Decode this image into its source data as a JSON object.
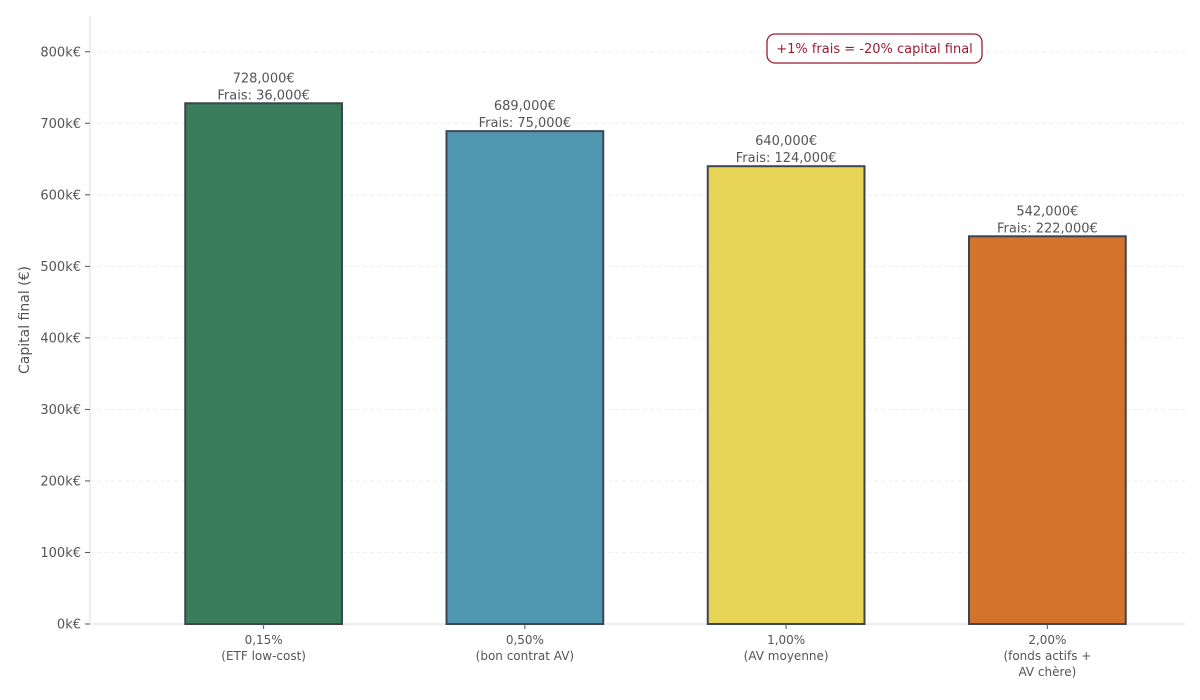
{
  "chart_data": {
    "type": "bar",
    "title": "",
    "xlabel": "",
    "ylabel": "Capital final (€)",
    "ylim": [
      0,
      850000
    ],
    "yticks": [
      0,
      100000,
      200000,
      300000,
      400000,
      500000,
      600000,
      700000,
      800000
    ],
    "ytick_labels": [
      "0k€",
      "100k€",
      "200k€",
      "300k€",
      "400k€",
      "500k€",
      "600k€",
      "700k€",
      "800k€"
    ],
    "grid": true,
    "categories": [
      [
        "0,15%",
        "(ETF low-cost)"
      ],
      [
        "0,50%",
        "(bon contrat AV)"
      ],
      [
        "1,00%",
        "(AV moyenne)"
      ],
      [
        "2,00%",
        "(fonds actifs +",
        "AV chère)"
      ]
    ],
    "values": [
      728000,
      689000,
      640000,
      542000
    ],
    "value_labels": [
      "728,000€",
      "689,000€",
      "640,000€",
      "542,000€"
    ],
    "fee_labels": [
      "Frais: 36,000€",
      "Frais: 75,000€",
      "Frais: 124,000€",
      "Frais: 222,000€"
    ],
    "colors": [
      "#3a7d5a",
      "#5098b2",
      "#e8d455",
      "#d4742c"
    ],
    "edge_color": "#3d4550",
    "annotation": {
      "text": "+1% frais = -20% capital final",
      "color": "#9b1c31",
      "placement": "top-right"
    }
  }
}
